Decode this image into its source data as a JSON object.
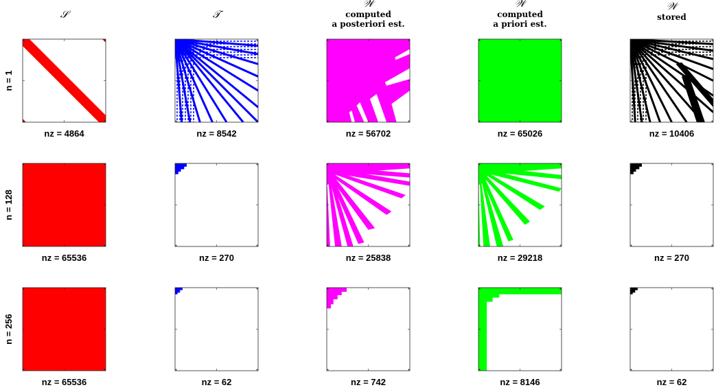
{
  "columns": [
    {
      "symbol": "𝒮",
      "subtitle": [],
      "color": "#ff0000"
    },
    {
      "symbol": "𝒯",
      "subtitle": [],
      "color": "#0000ff"
    },
    {
      "symbol": "𝒲",
      "subtitle": [
        "computed",
        "a posteriori est."
      ],
      "color": "#ff00ff"
    },
    {
      "symbol": "𝒲",
      "subtitle": [
        "computed",
        "a priori est."
      ],
      "color": "#00ff00"
    },
    {
      "symbol": "𝒲",
      "subtitle": [
        "stored"
      ],
      "color": "#000000"
    }
  ],
  "rows": [
    {
      "label": "n = 1",
      "nz": [
        "nz = 4864",
        "nz = 8542",
        "nz = 56702",
        "nz = 65026",
        "nz = 10406"
      ]
    },
    {
      "label": "n = 128",
      "nz": [
        "nz = 65536",
        "nz = 270",
        "nz = 25838",
        "nz = 29218",
        "nz = 270"
      ]
    },
    {
      "label": "n = 256",
      "nz": [
        "nz = 65536",
        "nz = 62",
        "nz = 742",
        "nz = 8146",
        "nz = 62"
      ]
    }
  ]
}
